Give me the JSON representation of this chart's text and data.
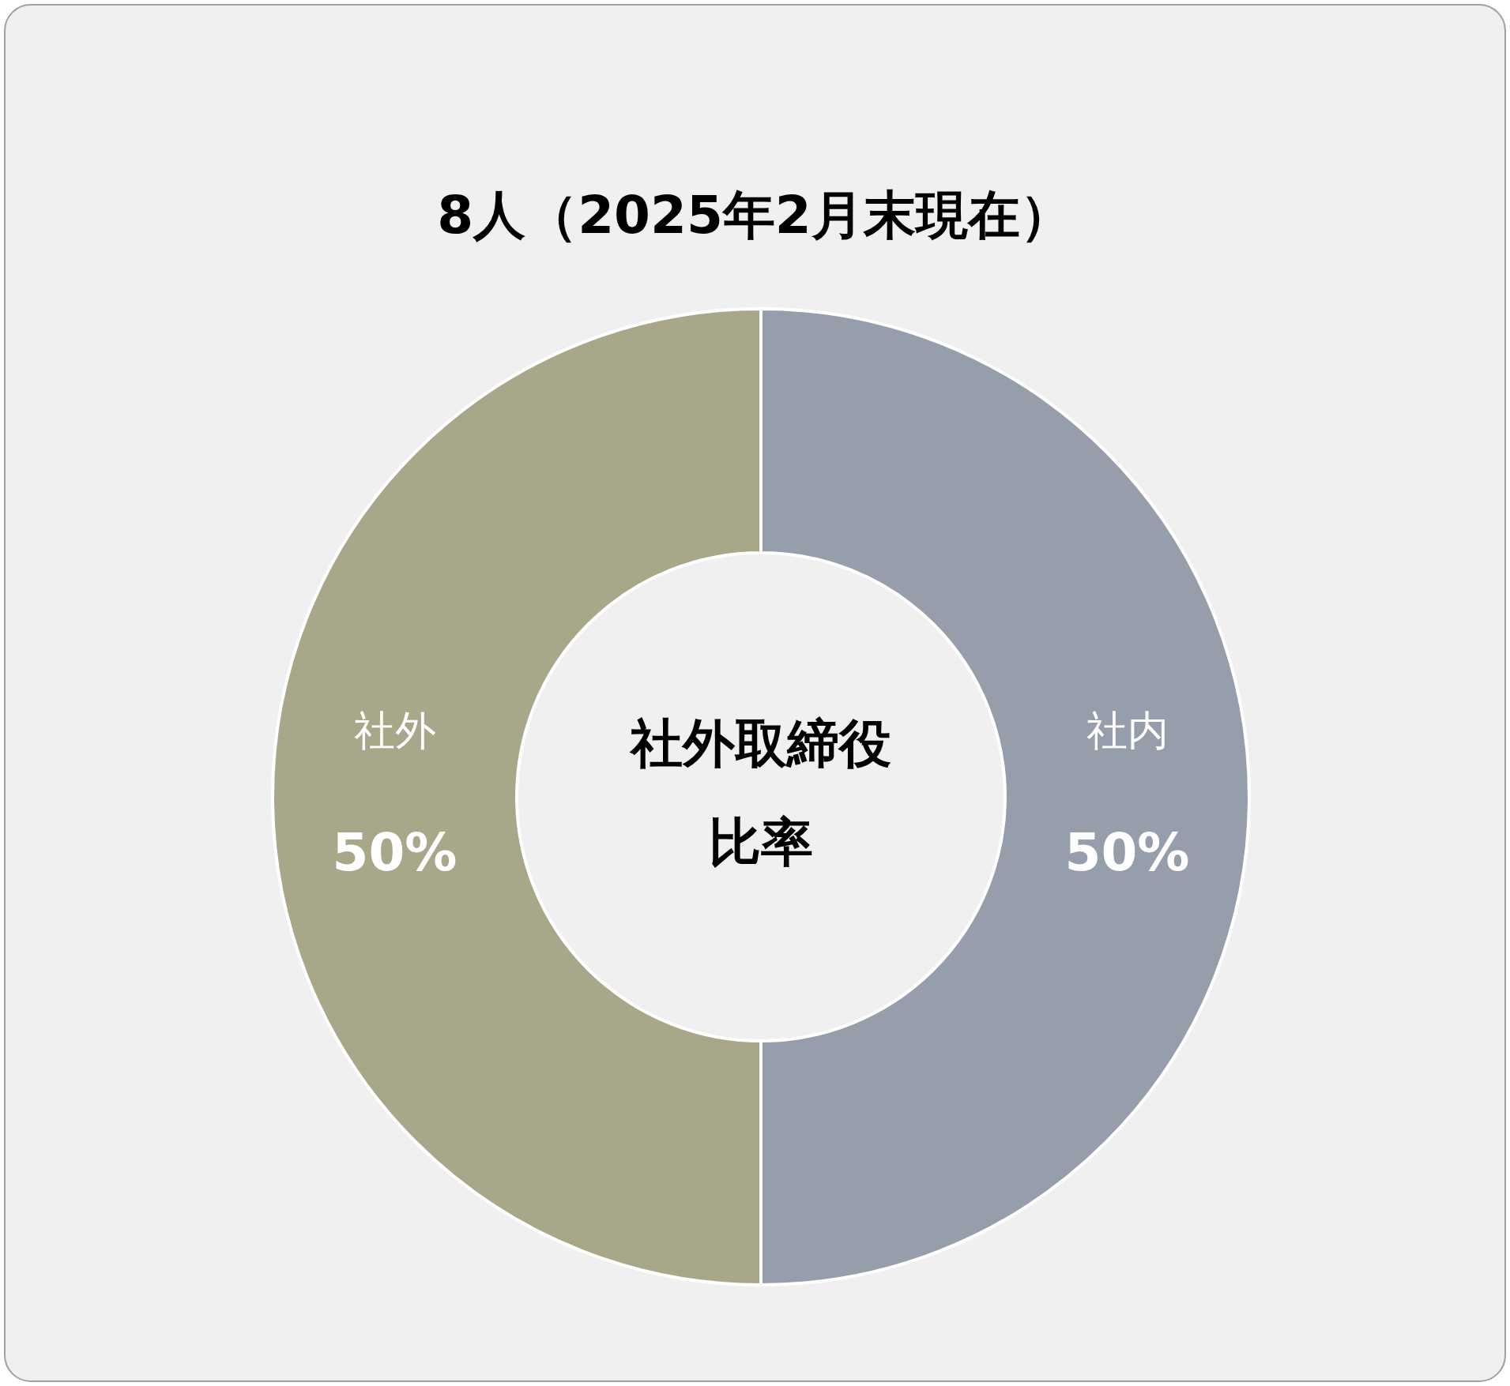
{
  "chart_data": {
    "type": "donut",
    "title": "8人（2025年2月末現在）",
    "categories": [
      "社内",
      "社外"
    ],
    "values": [
      50,
      50
    ],
    "value_labels": [
      "50%",
      "50%"
    ],
    "colors": [
      "#979eab",
      "#a8a78a"
    ],
    "annotations": [
      "社外取締役",
      "比率"
    ],
    "legend": false
  }
}
